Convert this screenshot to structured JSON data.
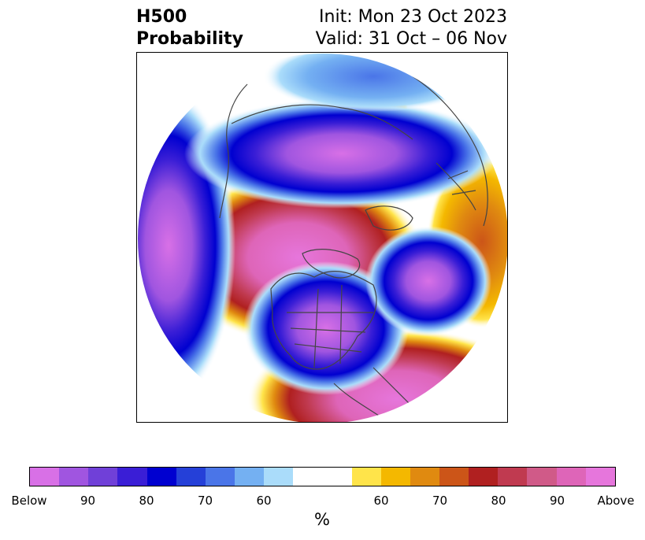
{
  "header": {
    "title_line1": "H500",
    "title_line2": "Probability",
    "init_text": "Init: Mon 23 Oct 2023",
    "valid_text": "Valid: 31 Oct – 06 Nov"
  },
  "map": {
    "projection": "polar-stereographic-north",
    "anomaly_features": [
      {
        "name": "below-arctic-band",
        "category": "Below"
      },
      {
        "name": "below-north-america",
        "category": "Below"
      },
      {
        "name": "below-north-atlantic",
        "category": "Below"
      },
      {
        "name": "below-west-pacific",
        "category": "Below"
      },
      {
        "name": "above-pole-siberia",
        "category": "Above"
      },
      {
        "name": "above-east-pacific",
        "category": "Above"
      },
      {
        "name": "above-europe-atlantic",
        "category": "Above"
      }
    ]
  },
  "colorbar": {
    "unit": "%",
    "colors": [
      "#d870e6",
      "#a055e0",
      "#7040d8",
      "#3a1ed6",
      "#0000d0",
      "#2540d8",
      "#4a75e8",
      "#74b0f2",
      "#aadcfa",
      "#ffffff",
      "#ffe44a",
      "#f4b800",
      "#e08a10",
      "#cc5518",
      "#b02020",
      "#c03a50",
      "#d05a88",
      "#de65b8",
      "#e676dc"
    ],
    "tick_labels": [
      "Below",
      "90",
      "80",
      "70",
      "60",
      "60",
      "70",
      "80",
      "90",
      "Above"
    ]
  }
}
